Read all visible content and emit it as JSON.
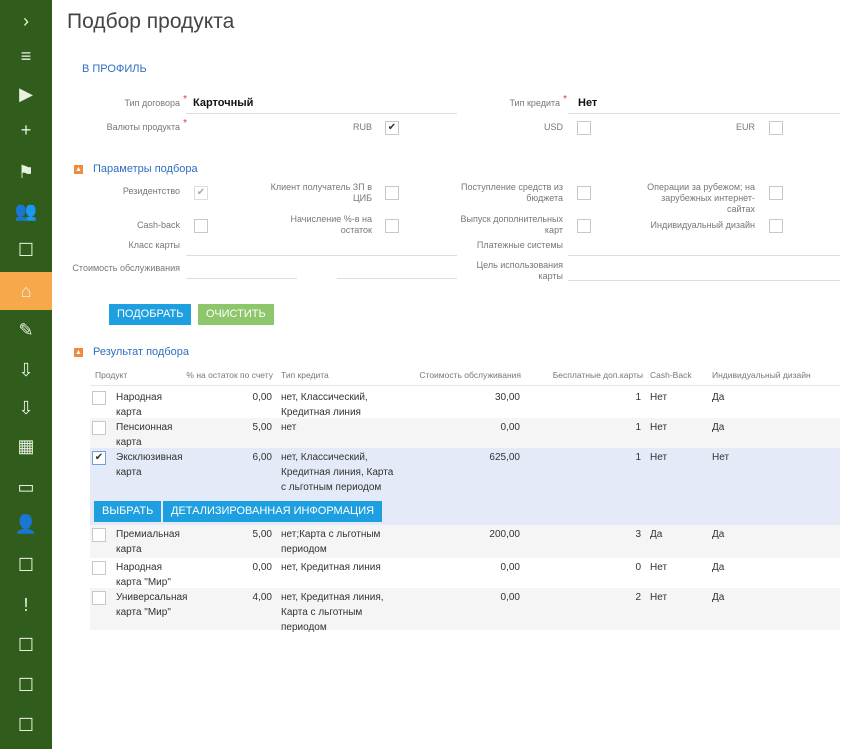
{
  "sidebar": {
    "items": [
      "chevron-right",
      "menu",
      "play",
      "plus",
      "flag",
      "contacts",
      "chat-contact",
      "home",
      "edit-doc",
      "import-contact",
      "import-contact-2",
      "building",
      "briefcase",
      "person",
      "chat-person",
      "alert-chat",
      "chat-person-2",
      "chat-person-3",
      "chat-person-4"
    ],
    "active": "home",
    "glyphs": [
      "›",
      "≡",
      "▶",
      "+",
      "⚑",
      "👥",
      "☐",
      "⌂",
      "✎",
      "⇩",
      "⇩",
      "▦",
      "▭",
      "👤",
      "☐",
      "!",
      "☐",
      "☐",
      "☐"
    ]
  },
  "page": {
    "title": "Подбор продукта",
    "profile_link": "В ПРОФИЛЬ"
  },
  "form": {
    "contract_type_label": "Тип договора",
    "contract_type_value": "Карточный",
    "credit_type_label": "Тип кредита",
    "credit_type_value": "Нет",
    "currencies_label": "Валюты продукта",
    "rub": "RUB",
    "usd": "USD",
    "eur": "EUR",
    "rub_checked": true,
    "usd_checked": false,
    "eur_checked": false
  },
  "params": {
    "title": "Параметры подбора",
    "residency": "Резидентство",
    "salary_client": "Клиент получатель ЗП в ЦИБ",
    "budget_income": "Поступление средств из бюджета",
    "abroad_ops": "Операции за рубежом; на зарубежных интернет-сайтах",
    "cashback": "Cash-back",
    "interest": "Начисление %-в на остаток",
    "extra_cards": "Выпуск дополнительных карт",
    "custom_design": "Индивидуальный дизайн",
    "card_class": "Класс карты",
    "payment_systems": "Платежные системы",
    "service_cost": "Стоимость обслуживания",
    "card_purpose": "Цель использования карты"
  },
  "actions": {
    "select": "ПОДОБРАТЬ",
    "clear": "ОЧИСТИТЬ"
  },
  "results": {
    "title": "Результат подбора",
    "headers": [
      "Продукт",
      "% на остаток по счету",
      "Тип кредита",
      "Стоимость обслуживания",
      "Бесплатные доп.карты",
      "Cash-Back",
      "Индивидуальный дизайн"
    ],
    "rows": [
      {
        "product": "Народная карта",
        "pct": "0,00",
        "credit": "нет, Классический, Кредитная линия",
        "cost": "30,00",
        "free": "1",
        "cashback": "Нет",
        "design": "Да",
        "checked": false
      },
      {
        "product": "Пенсионная карта",
        "pct": "5,00",
        "credit": "нет",
        "cost": "0,00",
        "free": "1",
        "cashback": "Нет",
        "design": "Да",
        "checked": false
      },
      {
        "product": "Эксклюзивная карта",
        "pct": "6,00",
        "credit": "нет, Классический, Кредитная линия, Карта с льготным периодом",
        "cost": "625,00",
        "free": "1",
        "cashback": "Нет",
        "design": "Нет",
        "checked": true
      },
      {
        "product": "Премиальная карта",
        "pct": "5,00",
        "credit": "нет;Карта с льготным периодом",
        "cost": "200,00",
        "free": "3",
        "cashback": "Да",
        "design": "Да",
        "checked": false
      },
      {
        "product": "Народная карта \"Мир\"",
        "pct": "0,00",
        "credit": "нет, Кредитная линия",
        "cost": "0,00",
        "free": "0",
        "cashback": "Нет",
        "design": "Да",
        "checked": false
      },
      {
        "product": "Универсальная карта \"Мир\"",
        "pct": "4,00",
        "credit": "нет, Кредитная линия, Карта с льготным периодом",
        "cost": "0,00",
        "free": "2",
        "cashback": "Нет",
        "design": "Да",
        "checked": false
      }
    ],
    "choose_button": "ВЫБРАТЬ",
    "details_button": "ДЕТАЛИЗИРОВАННАЯ ИНФОРМАЦИЯ"
  }
}
